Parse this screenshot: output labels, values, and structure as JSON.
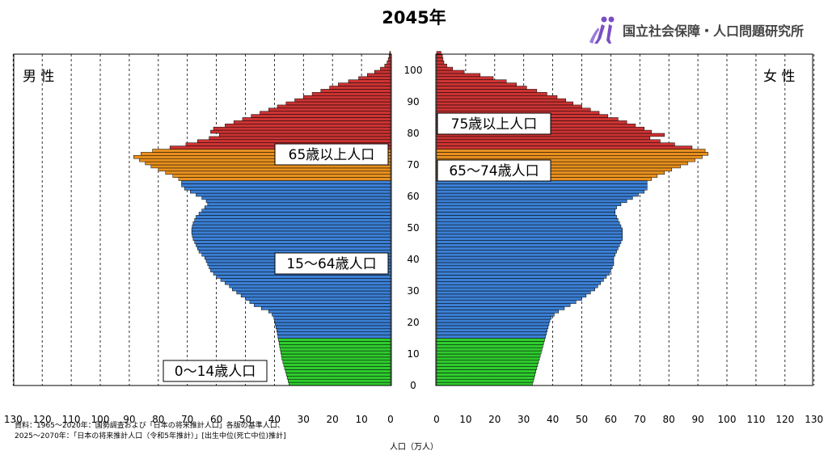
{
  "page": {
    "title": "2045年",
    "logo_text": "国立社会保障・人口問題研究所",
    "source_lines": [
      "資料：1965〜2020年：国勢調査および「日本の将来推計人口」各版の基準人口、",
      "2025〜2070年：「日本の将来推計人口（令和5年推計）」[出生中位(死亡中位)推計]"
    ]
  },
  "colors": {
    "age_0_14": "#2ecc2e",
    "age_15_64": "#3b7fd4",
    "age_65_74": "#e8901e",
    "age_75_plus": "#cc3333",
    "outline": "#000000"
  },
  "chart_data": {
    "type": "bar",
    "orientation": "horizontal-pyramid",
    "xlabel": "人口（万人）",
    "left_label": "男 性",
    "right_label": "女 性",
    "x_ticks": [
      0,
      10,
      20,
      30,
      40,
      50,
      60,
      70,
      80,
      90,
      100,
      110,
      120,
      130
    ],
    "y_ticks": [
      0,
      10,
      20,
      30,
      40,
      50,
      60,
      70,
      80,
      90,
      100
    ],
    "xlim": [
      0,
      130
    ],
    "ylim": [
      0,
      105
    ],
    "grid": "vertical-dashed",
    "age_groups": [
      {
        "label": "0〜14歳人口",
        "from": 0,
        "to": 14
      },
      {
        "label": "15〜64歳人口",
        "from": 15,
        "to": 64
      },
      {
        "label": "65歳以上人口",
        "from": 65,
        "to": 105
      },
      {
        "label": "65〜74歳人口",
        "from": 65,
        "to": 74
      },
      {
        "label": "75歳以上人口",
        "from": 75,
        "to": 105
      }
    ],
    "ages": [
      0,
      1,
      2,
      3,
      4,
      5,
      6,
      7,
      8,
      9,
      10,
      11,
      12,
      13,
      14,
      15,
      16,
      17,
      18,
      19,
      20,
      21,
      22,
      23,
      24,
      25,
      26,
      27,
      28,
      29,
      30,
      31,
      32,
      33,
      34,
      35,
      36,
      37,
      38,
      39,
      40,
      41,
      42,
      43,
      44,
      45,
      46,
      47,
      48,
      49,
      50,
      51,
      52,
      53,
      54,
      55,
      56,
      57,
      58,
      59,
      60,
      61,
      62,
      63,
      64,
      65,
      66,
      67,
      68,
      69,
      70,
      71,
      72,
      73,
      74,
      75,
      76,
      77,
      78,
      79,
      80,
      81,
      82,
      83,
      84,
      85,
      86,
      87,
      88,
      89,
      90,
      91,
      92,
      93,
      94,
      95,
      96,
      97,
      98,
      99,
      100,
      101,
      102,
      103,
      104,
      105
    ],
    "series": [
      {
        "name": "男 性",
        "values": [
          35.0,
          35.3,
          35.6,
          35.9,
          36.2,
          36.5,
          36.8,
          37.1,
          37.4,
          37.6,
          37.8,
          38.0,
          38.2,
          38.4,
          38.6,
          38.8,
          39.0,
          39.2,
          39.5,
          39.8,
          40.0,
          40.2,
          40.8,
          42.0,
          44.5,
          47.0,
          48.5,
          50.0,
          51.5,
          53.0,
          54.5,
          55.5,
          57.0,
          58.5,
          60.0,
          61.0,
          62.0,
          62.5,
          63.0,
          63.5,
          64.0,
          65.0,
          66.0,
          66.5,
          67.0,
          67.5,
          68.0,
          68.3,
          68.5,
          68.5,
          68.3,
          68.0,
          67.5,
          67.0,
          66.0,
          65.0,
          64.0,
          63.0,
          63.5,
          65.0,
          67.0,
          69.0,
          71.0,
          72.0,
          72.0,
          73.0,
          75.0,
          77.5,
          80.0,
          82.5,
          84.5,
          86.5,
          88.5,
          86.0,
          82.0,
          76.0,
          70.5,
          66.5,
          62.5,
          59.0,
          62.0,
          61.0,
          57.0,
          54.0,
          51.0,
          48.0,
          45.0,
          42.0,
          39.0,
          36.0,
          33.0,
          30.0,
          27.0,
          24.0,
          21.0,
          18.0,
          14.5,
          11.0,
          8.0,
          5.5,
          3.5,
          2.0,
          1.2,
          0.8,
          0.5,
          0.3
        ]
      },
      {
        "name": "女 性",
        "values": [
          33.0,
          33.3,
          33.6,
          33.9,
          34.2,
          34.5,
          34.8,
          35.1,
          35.4,
          35.7,
          36.0,
          36.3,
          36.6,
          36.9,
          37.2,
          37.5,
          37.8,
          38.1,
          38.4,
          38.7,
          39.0,
          39.5,
          40.5,
          42.0,
          44.0,
          46.0,
          48.0,
          50.0,
          51.5,
          53.0,
          54.5,
          55.5,
          56.5,
          57.5,
          58.5,
          59.5,
          60.0,
          60.5,
          61.0,
          61.0,
          61.0,
          61.5,
          62.0,
          62.5,
          63.0,
          63.5,
          64.0,
          64.0,
          64.0,
          64.0,
          63.5,
          63.0,
          62.5,
          62.0,
          61.5,
          61.5,
          62.0,
          63.5,
          65.5,
          67.5,
          69.5,
          71.5,
          72.5,
          72.5,
          72.5,
          74.0,
          76.0,
          78.5,
          81.0,
          84.0,
          86.5,
          89.0,
          91.5,
          93.5,
          92.5,
          88.0,
          82.0,
          77.0,
          73.5,
          78.5,
          74.0,
          71.5,
          68.5,
          65.5,
          62.5,
          59.0,
          56.0,
          53.0,
          50.0,
          47.0,
          44.5,
          41.5,
          38.0,
          34.5,
          31.0,
          27.5,
          24.0,
          19.5,
          15.0,
          9.5,
          5.5,
          3.5,
          2.5,
          2.2,
          2.0,
          1.5
        ]
      }
    ]
  }
}
